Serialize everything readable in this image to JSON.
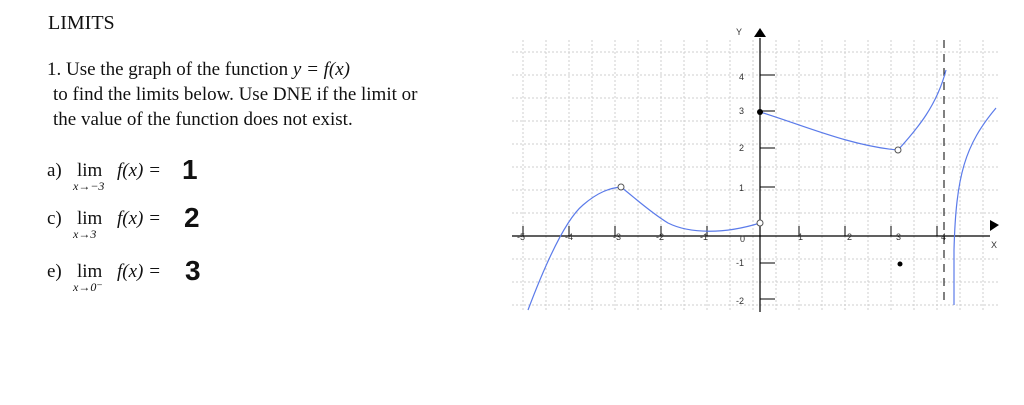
{
  "header": {
    "title": "LIMITS"
  },
  "problem": {
    "lines": [
      "1. Use the graph of the function ",
      "to find the limits below. Use DNE if the limit or",
      "the value of the function does not exist."
    ],
    "function_expr": "y = f(x)"
  },
  "parts": [
    {
      "letter": "a)",
      "lim": "lim",
      "approach": "x→−3",
      "expr": "f(x) =",
      "answer": "1"
    },
    {
      "letter": "c)",
      "lim": "lim",
      "approach": "x→3",
      "expr": "f(x) =",
      "answer": "2"
    },
    {
      "letter": "e)",
      "lim": "lim",
      "approach": "x→0⁻",
      "expr": "f(x) =",
      "answer": "3"
    }
  ],
  "graph": {
    "x_axis_label": "X",
    "y_axis_label": "Y",
    "x_tick_labels": [
      "-5",
      "-4",
      "-3",
      "-2",
      "-1",
      "0",
      "1",
      "2",
      "3",
      "4"
    ],
    "y_tick_labels": [
      "4",
      "3",
      "2",
      "1",
      "-1",
      "-2"
    ],
    "curve_color": "#5b7bea",
    "axis_color": "#000000"
  }
}
